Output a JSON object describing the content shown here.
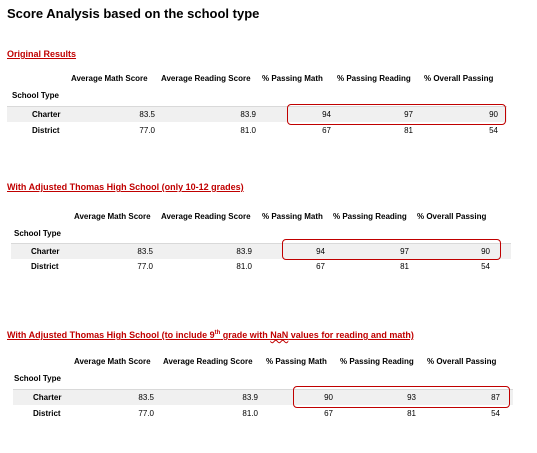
{
  "title": "Score Analysis based on the school type",
  "columns": [
    "Average Math Score",
    "Average Reading Score",
    "% Passing Math",
    "% Passing Reading",
    "% Overall Passing"
  ],
  "index_name": "School Type",
  "sections": [
    {
      "label": "Original Results",
      "rows": [
        {
          "name": "Charter",
          "values": [
            "83.5",
            "83.9",
            "94",
            "97",
            "90"
          ]
        },
        {
          "name": "District",
          "values": [
            "77.0",
            "81.0",
            "67",
            "81",
            "54"
          ]
        }
      ]
    },
    {
      "label": "With Adjusted Thomas High School (only 10-12 grades)",
      "rows": [
        {
          "name": "Charter",
          "values": [
            "83.5",
            "83.9",
            "94",
            "97",
            "90"
          ]
        },
        {
          "name": "District",
          "values": [
            "77.0",
            "81.0",
            "67",
            "81",
            "54"
          ]
        }
      ]
    },
    {
      "label_parts": {
        "before": "With Adjusted Thomas High School (to include 9",
        "sup": "th",
        "middle": " grade with ",
        "squiggle": "NaN",
        "after": " values for reading and math)"
      },
      "rows": [
        {
          "name": "Charter",
          "values": [
            "83.5",
            "83.9",
            "90",
            "93",
            "87"
          ]
        },
        {
          "name": "District",
          "values": [
            "77.0",
            "81.0",
            "67",
            "81",
            "54"
          ]
        }
      ]
    }
  ],
  "colors": {
    "label_red": "#c00000",
    "highlight_red": "#c00000",
    "row_shade": "#f0f0f0"
  }
}
